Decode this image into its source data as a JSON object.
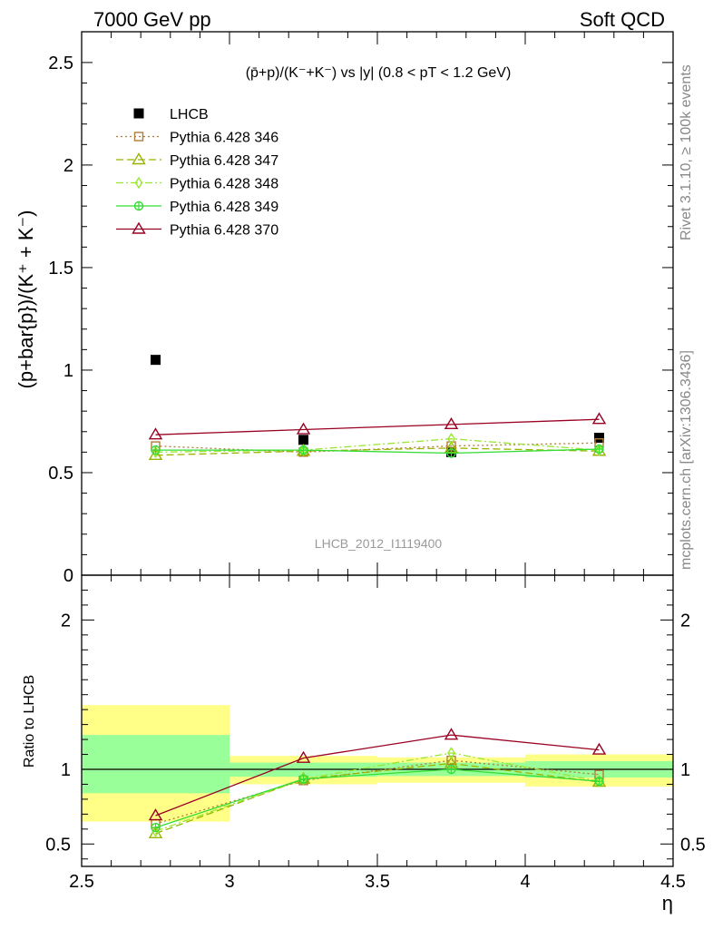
{
  "header": {
    "left": "7000 GeV pp",
    "right": "Soft QCD"
  },
  "side_labels": {
    "rivet": "Rivet 3.1.10, ≥ 100k events",
    "mcplots": "mcplots.cern.ch [arXiv:1306.3436]"
  },
  "watermark": "LHCB_2012_I1119400",
  "colors": {
    "lhcb": "#000000",
    "py346": "#b07c3a",
    "py347": "#99b300",
    "py348": "#99e633",
    "py349": "#33dd33",
    "py370": "#990022",
    "band_outer": "#ffff88",
    "band_inner": "#99ff99"
  },
  "chart_data": [
    {
      "type": "scatter",
      "title": "(p̄+p)/(K⁻+K⁻) vs |y| (0.8 < pT < 1.2 GeV)",
      "ylabel": "(p+bar{p})/(K⁺ + K⁻)",
      "xlim": [
        2.5,
        4.5
      ],
      "ylim": [
        0,
        2.65
      ],
      "y_ticks": [
        "0",
        "0.5",
        "1",
        "1.5",
        "2",
        "2.5"
      ],
      "legend_position": "top-left",
      "x": [
        2.75,
        3.25,
        3.75,
        4.25
      ],
      "series": [
        {
          "name": "LHCB",
          "values": [
            1.05,
            0.66,
            0.6,
            0.67
          ],
          "marker": "square-filled"
        },
        {
          "name": "Pythia 6.428 346",
          "values": [
            0.63,
            0.6,
            0.63,
            0.645
          ],
          "marker": "square-open",
          "dash": "2,3"
        },
        {
          "name": "Pythia 6.428 347",
          "values": [
            0.585,
            0.605,
            0.62,
            0.605
          ],
          "marker": "triangle-open",
          "dash": "8,4"
        },
        {
          "name": "Pythia 6.428 348",
          "values": [
            0.6,
            0.61,
            0.665,
            0.61
          ],
          "marker": "diamond-open",
          "dash": "8,3,2,3"
        },
        {
          "name": "Pythia 6.428 349",
          "values": [
            0.61,
            0.61,
            0.595,
            0.615
          ],
          "marker": "circle-cross",
          "dash": ""
        },
        {
          "name": "Pythia 6.428 370",
          "values": [
            0.685,
            0.71,
            0.735,
            0.76
          ],
          "marker": "triangle-open",
          "dash": ""
        }
      ]
    },
    {
      "type": "line",
      "ylabel": "Ratio to LHCB",
      "xlabel": "η",
      "xlim": [
        2.5,
        4.5
      ],
      "ylim": [
        0.35,
        2.3
      ],
      "x_ticks": [
        "2.5",
        "3",
        "3.5",
        "4",
        "4.5"
      ],
      "y_ticks": [
        "0.5",
        "1",
        "2"
      ],
      "reference_line": 1,
      "x": [
        2.75,
        3.25,
        3.75,
        4.25
      ],
      "bins": [
        [
          2.5,
          3.0
        ],
        [
          3.0,
          3.5
        ],
        [
          3.5,
          4.0
        ],
        [
          4.0,
          4.5
        ]
      ],
      "band_outer": [
        [
          0.65,
          1.43
        ],
        [
          0.9,
          1.09
        ],
        [
          0.91,
          1.08
        ],
        [
          0.885,
          1.1
        ]
      ],
      "band_inner": [
        [
          0.84,
          1.23
        ],
        [
          0.95,
          1.045
        ],
        [
          0.955,
          1.045
        ],
        [
          0.945,
          1.055
        ]
      ],
      "series": [
        {
          "name": "Pythia 6.428 346",
          "values": [
            0.635,
            0.925,
            1.06,
            0.965
          ]
        },
        {
          "name": "Pythia 6.428 347",
          "values": [
            0.57,
            0.935,
            1.04,
            0.915
          ]
        },
        {
          "name": "Pythia 6.428 348",
          "values": [
            0.585,
            0.935,
            1.11,
            0.92
          ]
        },
        {
          "name": "Pythia 6.428 349",
          "values": [
            0.61,
            0.935,
            1.0,
            0.92
          ]
        },
        {
          "name": "Pythia 6.428 370",
          "values": [
            0.69,
            1.075,
            1.23,
            1.13
          ]
        }
      ]
    }
  ]
}
